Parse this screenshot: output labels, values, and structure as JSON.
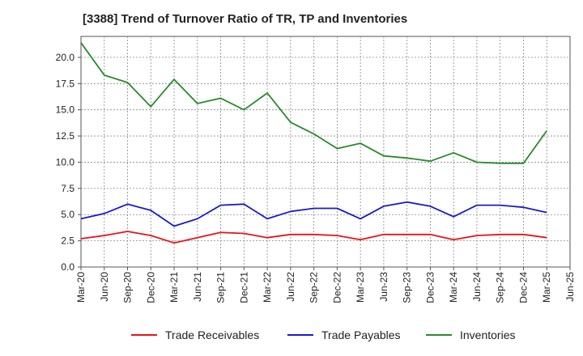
{
  "chart_data": {
    "type": "line",
    "title": "[3388]  Trend of Turnover Ratio of TR, TP and Inventories",
    "xlabel": "",
    "ylabel": "",
    "ylim": [
      0,
      22
    ],
    "yticks": [
      "0.0",
      "2.5",
      "5.0",
      "7.5",
      "10.0",
      "12.5",
      "15.0",
      "17.5",
      "20.0"
    ],
    "xticks": [
      "Mar-20",
      "Jun-20",
      "Sep-20",
      "Dec-20",
      "Mar-21",
      "Jun-21",
      "Sep-21",
      "Dec-21",
      "Mar-22",
      "Jun-22",
      "Sep-22",
      "Dec-22",
      "Mar-23",
      "Jun-23",
      "Sep-23",
      "Dec-23",
      "Mar-24",
      "Jun-24",
      "Sep-24",
      "Dec-24",
      "Mar-25",
      "Jun-25"
    ],
    "grid": true,
    "legend_position": "bottom",
    "x": [
      "Mar-20",
      "Jun-20",
      "Sep-20",
      "Dec-20",
      "Mar-21",
      "Jun-21",
      "Sep-21",
      "Dec-21",
      "Mar-22",
      "Jun-22",
      "Sep-22",
      "Dec-22",
      "Mar-23",
      "Jun-23",
      "Sep-23",
      "Dec-23",
      "Mar-24",
      "Jun-24",
      "Sep-24",
      "Dec-24",
      "Mar-25"
    ],
    "series": [
      {
        "name": "Trade Receivables",
        "color": "#e8141b",
        "values": [
          2.7,
          3.0,
          3.4,
          3.0,
          2.3,
          2.8,
          3.3,
          3.2,
          2.8,
          3.1,
          3.1,
          3.0,
          2.6,
          3.1,
          3.1,
          3.1,
          2.6,
          3.0,
          3.1,
          3.1,
          2.8
        ]
      },
      {
        "name": "Trade Payables",
        "color": "#1a1acc",
        "values": [
          4.6,
          5.1,
          6.0,
          5.4,
          3.9,
          4.6,
          5.9,
          6.0,
          4.6,
          5.3,
          5.6,
          5.6,
          4.6,
          5.8,
          6.2,
          5.8,
          4.8,
          5.9,
          5.9,
          5.7,
          5.2
        ]
      },
      {
        "name": "Inventories",
        "color": "#2a8a2a",
        "values": [
          21.4,
          18.3,
          17.6,
          15.3,
          17.9,
          15.6,
          16.1,
          15.0,
          16.6,
          13.8,
          12.7,
          11.3,
          11.8,
          10.6,
          10.4,
          10.1,
          10.9,
          10.0,
          9.9,
          9.9,
          13.0
        ]
      }
    ]
  }
}
